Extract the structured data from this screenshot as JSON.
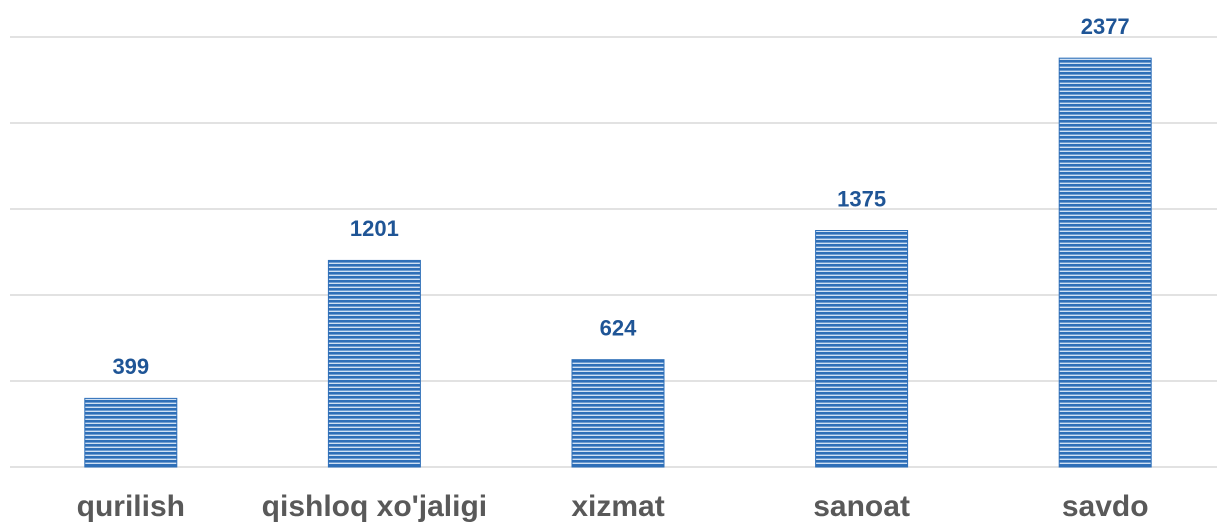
{
  "chart_data": {
    "type": "bar",
    "categories": [
      "qurilish",
      "qishloq xo'jaligi",
      "xizmat",
      "sanoat",
      "savdo"
    ],
    "values": [
      399,
      1201,
      624,
      1375,
      2377
    ],
    "color": "#2e6fb8",
    "ylim": [
      0,
      2500
    ],
    "yticks": [
      0,
      500,
      1000,
      1500,
      2000,
      2500
    ],
    "grid": true
  }
}
